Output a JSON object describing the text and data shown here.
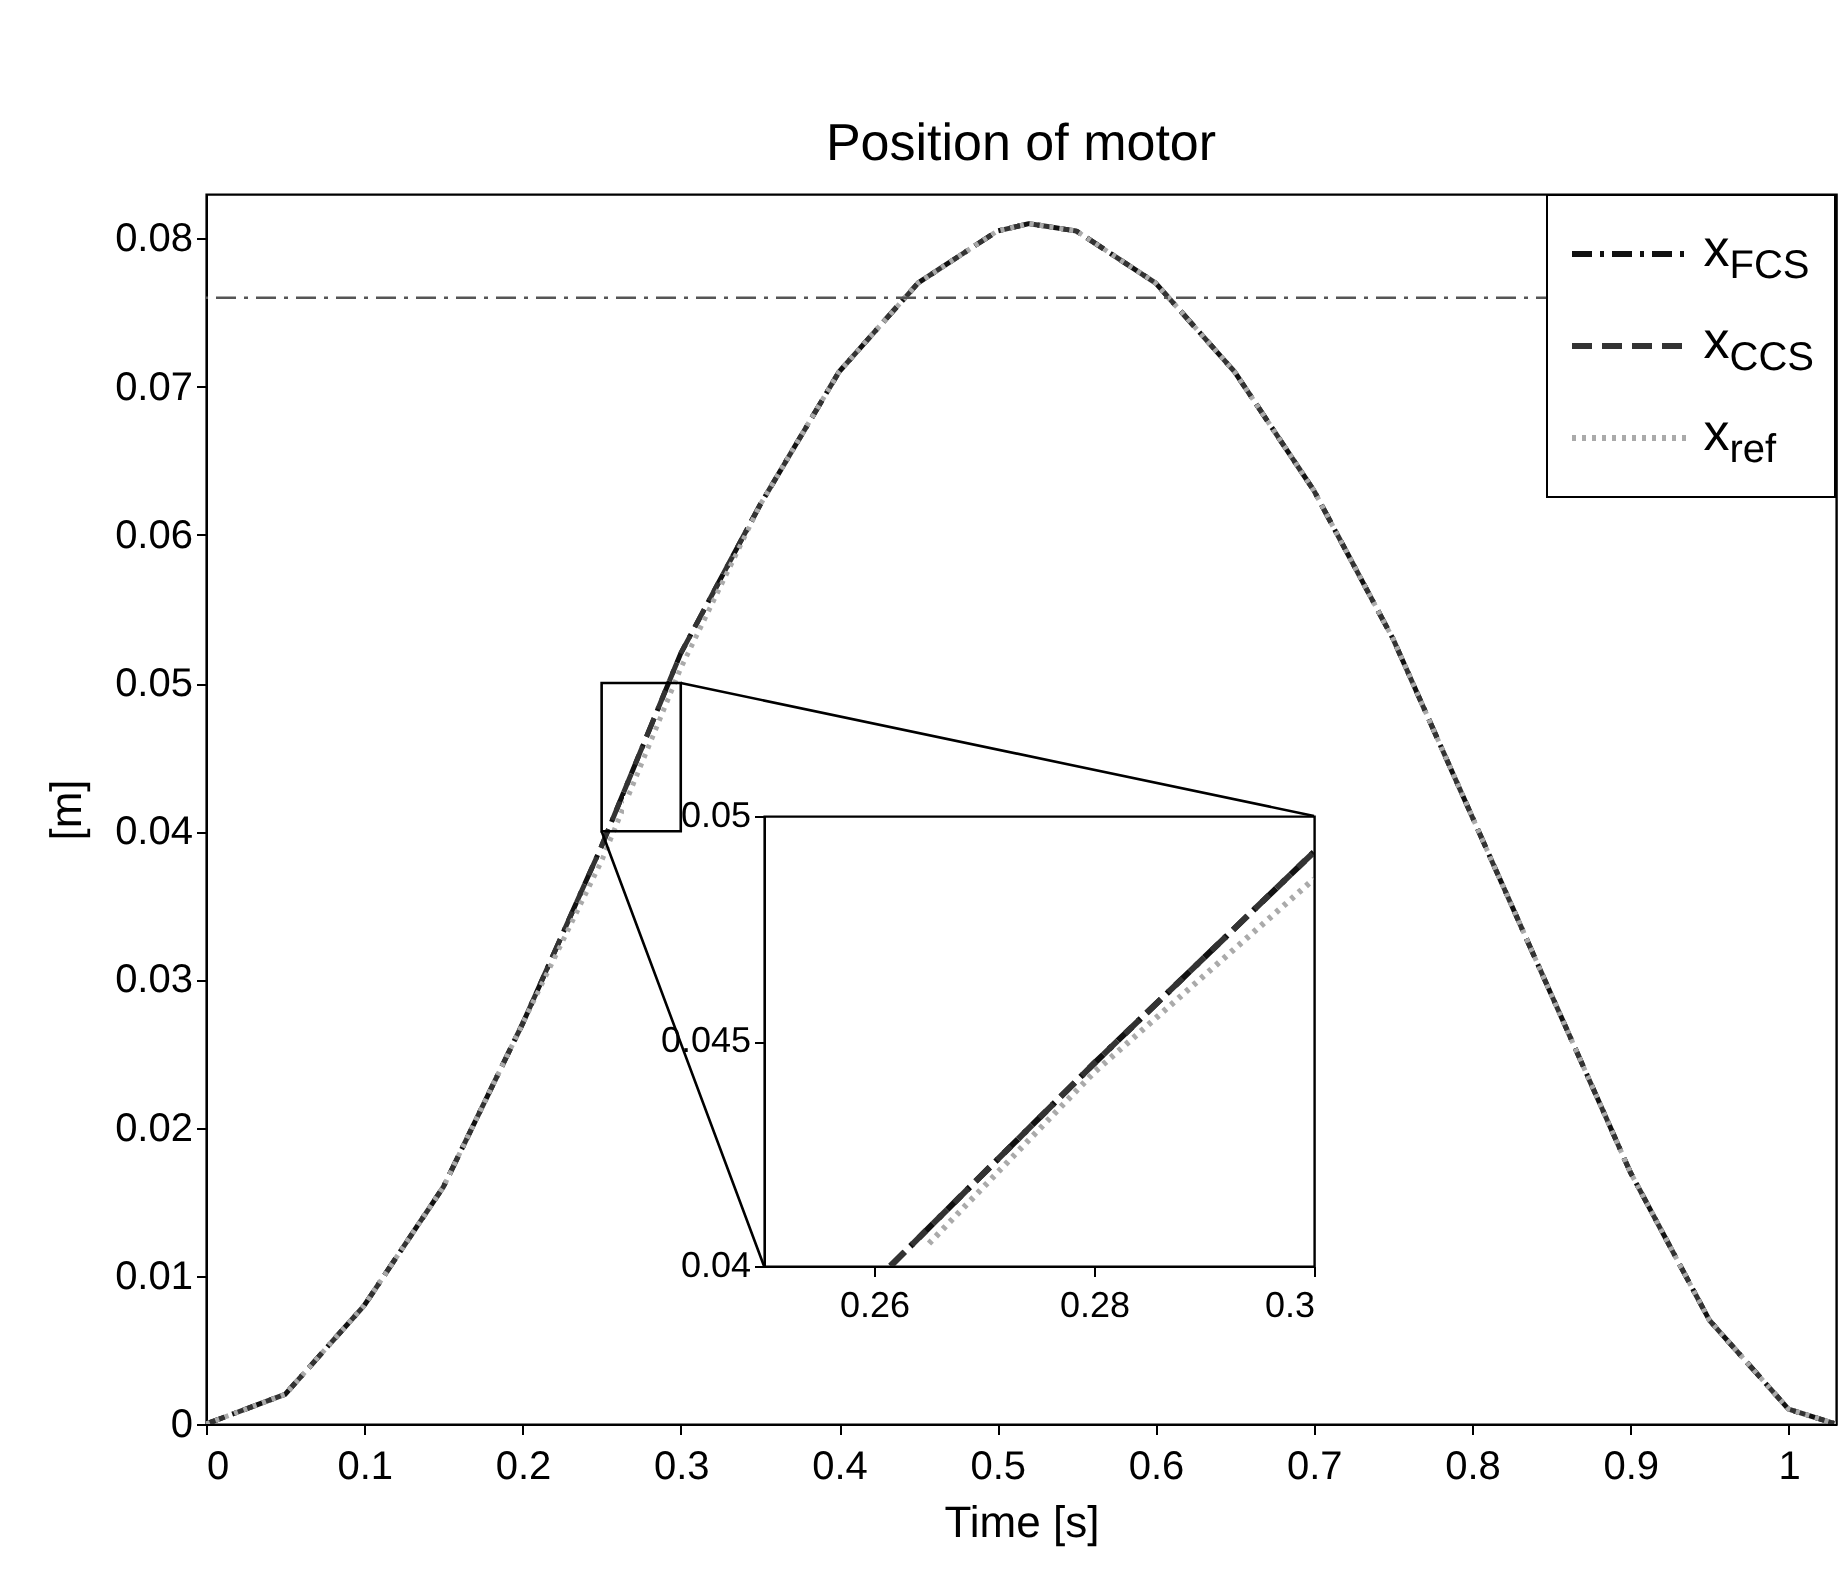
{
  "chart_data": [
    {
      "type": "line",
      "title": "Position of motor",
      "xlabel": "Time [s]",
      "ylabel": "[m]",
      "x": [
        0,
        0.05,
        0.1,
        0.15,
        0.2,
        0.25,
        0.3,
        0.35,
        0.4,
        0.45,
        0.5,
        0.52,
        0.55,
        0.6,
        0.65,
        0.7,
        0.75,
        0.8,
        0.85,
        0.9,
        0.95,
        1.0,
        1.03
      ],
      "series": [
        {
          "name": "x$_{FCS}$",
          "color": "#111111",
          "line_style": "dashdot",
          "values": [
            0,
            0.002,
            0.008,
            0.016,
            0.027,
            0.039,
            0.052,
            0.062,
            0.071,
            0.077,
            0.0805,
            0.081,
            0.0805,
            0.077,
            0.071,
            0.063,
            0.053,
            0.041,
            0.029,
            0.017,
            0.007,
            0.001,
            0
          ]
        },
        {
          "name": "x$_{CCS}$",
          "color": "#333333",
          "line_style": "dashed",
          "values": [
            0,
            0.002,
            0.008,
            0.016,
            0.027,
            0.039,
            0.052,
            0.062,
            0.071,
            0.077,
            0.0805,
            0.081,
            0.0805,
            0.077,
            0.071,
            0.063,
            0.053,
            0.041,
            0.029,
            0.017,
            0.007,
            0.001,
            0
          ]
        },
        {
          "name": "x$_{ref}$",
          "color": "#aaaaaa",
          "line_style": "dotted",
          "values": [
            0,
            0.002,
            0.008,
            0.016,
            0.027,
            0.038,
            0.051,
            0.062,
            0.071,
            0.077,
            0.0805,
            0.081,
            0.0805,
            0.077,
            0.071,
            0.063,
            0.053,
            0.041,
            0.029,
            0.017,
            0.007,
            0.001,
            0
          ]
        }
      ],
      "xlim": [
        0,
        1.03
      ],
      "xticks": [
        0,
        0.1,
        0.2,
        0.3,
        0.4,
        0.5,
        0.6,
        0.7,
        0.8,
        0.9,
        1
      ],
      "ylim": [
        0,
        0.083
      ],
      "yticks": [
        0,
        0.01,
        0.02,
        0.03,
        0.04,
        0.05,
        0.06,
        0.07,
        0.08
      ],
      "ref_lines": [
        {
          "axis": "y",
          "value": 0.076,
          "color": "#555555",
          "line_style": "dashdot"
        }
      ],
      "legend": "top right",
      "grid": false
    },
    {
      "type": "line",
      "x": [
        0.2615,
        0.28,
        0.3
      ],
      "series": [
        {
          "color": "#111111",
          "line_style": "dashdot",
          "values": [
            0.04,
            0.0445,
            0.0492
          ]
        },
        {
          "color": "#333333",
          "line_style": "dashed",
          "values": [
            0.04,
            0.0445,
            0.0492
          ]
        },
        {
          "color": "#aaaaaa",
          "line_style": "dotted",
          "x": [
            0.265,
            0.28,
            0.3
          ],
          "values": [
            0.0405,
            0.0443,
            0.0486
          ]
        }
      ],
      "xlim": [
        0.25,
        0.3
      ],
      "xticks": [
        0.26,
        0.28,
        0.3
      ],
      "ylim": [
        0.04,
        0.05
      ],
      "yticks": [
        0.04,
        0.045,
        0.05
      ],
      "grid": false
    }
  ]
}
